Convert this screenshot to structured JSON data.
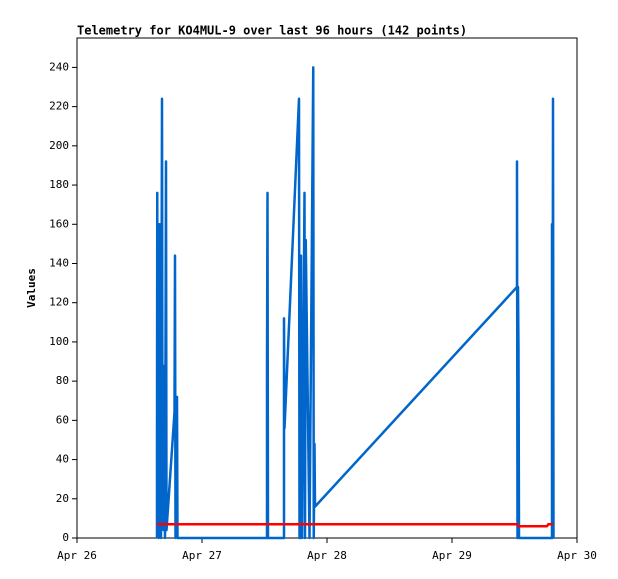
{
  "chart_data": {
    "type": "line",
    "title": "Telemetry for KO4MUL-9 over last 96 hours (142 points)",
    "y_label": "Values",
    "xlim": [
      0,
      4
    ],
    "xticks": [
      {
        "value": 0,
        "label": "Apr 26"
      },
      {
        "value": 1,
        "label": "Apr 27"
      },
      {
        "value": 2,
        "label": "Apr 28"
      },
      {
        "value": 3,
        "label": "Apr 29"
      },
      {
        "value": 4,
        "label": "Apr 30"
      }
    ],
    "ylim": [
      0,
      255
    ],
    "yticks": [
      0,
      20,
      40,
      60,
      80,
      100,
      120,
      140,
      160,
      180,
      200,
      220,
      240
    ],
    "series": [
      {
        "color": "#0066cc",
        "x": [
          0.64,
          0.64,
          0.642,
          0.646,
          0.65,
          0.654,
          0.66,
          0.664,
          0.668,
          0.672,
          0.68,
          0.684,
          0.688,
          0.692,
          0.7,
          0.704,
          0.712,
          0.716,
          0.78,
          0.784,
          0.788,
          0.8,
          0.804,
          1.52,
          1.52,
          1.524,
          1.528,
          1.656,
          1.656,
          1.66,
          1.776,
          1.78,
          1.784,
          1.788,
          1.792,
          1.796,
          1.8,
          1.82,
          1.824,
          1.83,
          1.86,
          1.89,
          1.894,
          1.9,
          1.904,
          3.52,
          3.52,
          3.524,
          3.528,
          3.532,
          3.536,
          3.8,
          3.8,
          3.804,
          3.808,
          3.812
        ],
        "values": [
          0,
          48,
          176,
          24,
          96,
          0,
          160,
          8,
          160,
          0,
          224,
          32,
          88,
          4,
          56,
          0,
          192,
          4,
          64,
          144,
          0,
          72,
          0,
          0,
          88,
          176,
          0,
          0,
          112,
          56,
          224,
          0,
          72,
          0,
          144,
          32,
          0,
          176,
          0,
          152,
          0,
          240,
          0,
          48,
          16,
          128,
          192,
          0,
          128,
          96,
          0,
          0,
          160,
          0,
          224,
          0
        ]
      },
      {
        "color": "#ff0000",
        "x": [
          0.64,
          3.52,
          3.53,
          3.76,
          3.77,
          3.81
        ],
        "values": [
          7,
          7,
          6,
          6,
          7,
          7
        ]
      }
    ]
  }
}
